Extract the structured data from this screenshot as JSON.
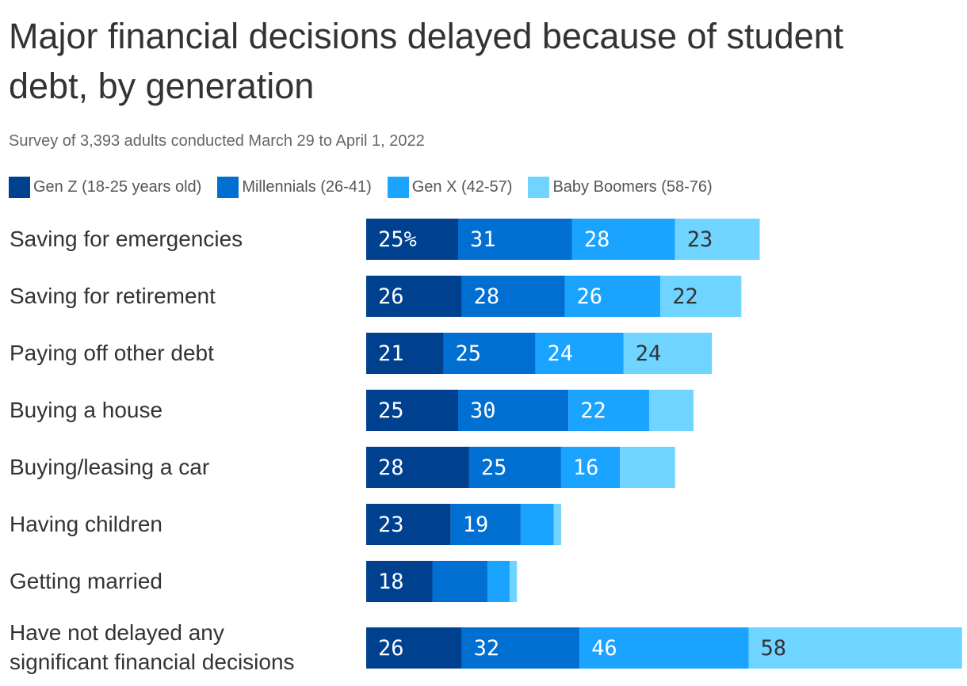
{
  "title": "Major financial decisions delayed because of student debt, by generation",
  "subtitle": "Survey of 3,393 adults conducted March 29 to April 1, 2022",
  "colors": {
    "gen_z": "#00418f",
    "millennials": "#006fd1",
    "gen_x": "#1aa3ff",
    "boomers": "#6fd4ff",
    "label_light": "#ffffff",
    "label_dark": "#333333"
  },
  "chart_data": {
    "type": "bar",
    "orientation": "horizontal",
    "stacked": true,
    "legend_position": "top",
    "categories": [
      "Saving for emergencies",
      "Saving for retirement",
      "Paying off other debt",
      "Buying a house",
      "Buying/leasing a car",
      "Having children",
      "Getting married",
      "Have not delayed any significant financial decisions"
    ],
    "category_lines": [
      [
        "Saving for emergencies"
      ],
      [
        "Saving for retirement"
      ],
      [
        "Paying off other debt"
      ],
      [
        "Buying a house"
      ],
      [
        "Buying/leasing a car"
      ],
      [
        "Having children"
      ],
      [
        "Getting married"
      ],
      [
        "Have not delayed any",
        "significant financial decisions"
      ]
    ],
    "series": [
      {
        "name": "Gen Z (18-25 years old)",
        "values": [
          25,
          26,
          21,
          25,
          28,
          23,
          18,
          26
        ],
        "labels": [
          "25%",
          "26",
          "21",
          "25",
          "28",
          "23",
          "18",
          "26"
        ]
      },
      {
        "name": "Millennials (26-41)",
        "values": [
          31,
          28,
          25,
          30,
          25,
          19,
          15,
          32
        ],
        "labels": [
          "31",
          "28",
          "25",
          "30",
          "25",
          "19",
          "",
          "32"
        ]
      },
      {
        "name": "Gen X (42-57)",
        "values": [
          28,
          26,
          24,
          22,
          16,
          9,
          6,
          46
        ],
        "labels": [
          "28",
          "26",
          "24",
          "22",
          "16",
          "",
          "",
          "46"
        ]
      },
      {
        "name": "Baby Boomers (58-76)",
        "values": [
          23,
          22,
          24,
          12,
          15,
          2,
          2,
          58
        ],
        "labels": [
          "23",
          "22",
          "24",
          "",
          "",
          "",
          "",
          "58"
        ]
      }
    ]
  }
}
